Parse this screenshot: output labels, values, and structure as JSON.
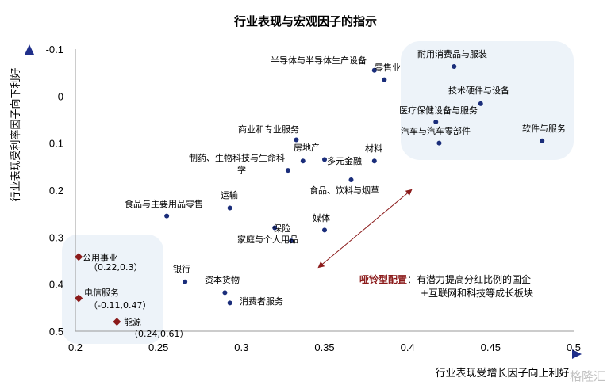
{
  "chart_data": {
    "type": "scatter",
    "title": "行业表现与宏观因子的指示",
    "xlabel": "行业表现受增长因子向上利好",
    "ylabel": "行业表现受利率因子向下利好",
    "xlim": [
      0.2,
      0.5
    ],
    "ylim": [
      -0.1,
      0.5
    ],
    "y_inverted": true,
    "xticks": [
      "0.2",
      "0.25",
      "0.3",
      "0.35",
      "0.4",
      "0.45",
      "0.5"
    ],
    "yticks": [
      "-0.1",
      "0",
      "0.1",
      "0.2",
      "0.3",
      "0.4",
      "0.5"
    ],
    "points": [
      {
        "label": "半导体与半导体生产设备",
        "x": 0.38,
        "y": -0.055,
        "color": "#1a2d7a",
        "marker": "circle"
      },
      {
        "label": "零售业",
        "x": 0.386,
        "y": -0.035,
        "color": "#1a2d7a",
        "marker": "circle"
      },
      {
        "label": "耐用消费品与服装",
        "x": 0.428,
        "y": -0.063,
        "color": "#1a2d7a",
        "marker": "circle"
      },
      {
        "label": "技术硬件与设备",
        "x": 0.444,
        "y": 0.016,
        "color": "#1a2d7a",
        "marker": "circle"
      },
      {
        "label": "医疗保健设备与服务",
        "x": 0.417,
        "y": 0.055,
        "color": "#1a2d7a",
        "marker": "circle"
      },
      {
        "label": "汽车与汽车零部件",
        "x": 0.419,
        "y": 0.1,
        "color": "#1a2d7a",
        "marker": "circle"
      },
      {
        "label": "软件与服务",
        "x": 0.481,
        "y": 0.095,
        "color": "#1a2d7a",
        "marker": "circle"
      },
      {
        "label": "商业和专业服务",
        "x": 0.333,
        "y": 0.093,
        "color": "#1a2d7a",
        "marker": "circle"
      },
      {
        "label": "房地产",
        "x": 0.337,
        "y": 0.138,
        "color": "#1a2d7a",
        "marker": "circle"
      },
      {
        "label": "制药、生物科技与生命科学",
        "x": 0.328,
        "y": 0.158,
        "color": "#1a2d7a",
        "marker": "circle"
      },
      {
        "label": "多元金融",
        "x": 0.35,
        "y": 0.135,
        "color": "#1a2d7a",
        "marker": "circle"
      },
      {
        "label": "材料",
        "x": 0.38,
        "y": 0.138,
        "color": "#1a2d7a",
        "marker": "circle"
      },
      {
        "label": "食品、饮料与烟草",
        "x": 0.366,
        "y": 0.178,
        "color": "#1a2d7a",
        "marker": "circle"
      },
      {
        "label": "食品与主要用品零售",
        "x": 0.255,
        "y": 0.255,
        "color": "#1a2d7a",
        "marker": "circle"
      },
      {
        "label": "运输",
        "x": 0.293,
        "y": 0.238,
        "color": "#1a2d7a",
        "marker": "circle"
      },
      {
        "label": "保险",
        "x": 0.32,
        "y": 0.28,
        "color": "#1a2d7a",
        "marker": "circle"
      },
      {
        "label": "家庭与个人用品",
        "x": 0.33,
        "y": 0.308,
        "color": "#1a2d7a",
        "marker": "circle"
      },
      {
        "label": "媒体",
        "x": 0.35,
        "y": 0.285,
        "color": "#1a2d7a",
        "marker": "circle"
      },
      {
        "label": "银行",
        "x": 0.266,
        "y": 0.395,
        "color": "#1a2d7a",
        "marker": "circle"
      },
      {
        "label": "资本货物",
        "x": 0.29,
        "y": 0.418,
        "color": "#1a2d7a",
        "marker": "circle"
      },
      {
        "label": "消费者服务",
        "x": 0.293,
        "y": 0.44,
        "color": "#1a2d7a",
        "marker": "circle"
      },
      {
        "label": "公用事业",
        "sublabel": "（0.22,0.3）",
        "x": 0.202,
        "y": 0.342,
        "color": "#8b1a1a",
        "marker": "diamond"
      },
      {
        "label": "电信服务",
        "sublabel": "（-0.11,0.47）",
        "x": 0.202,
        "y": 0.43,
        "color": "#8b1a1a",
        "marker": "diamond"
      },
      {
        "label": "能源",
        "sublabel": "（0.24,0.61）",
        "x": 0.225,
        "y": 0.48,
        "color": "#8b1a1a",
        "marker": "diamond"
      }
    ],
    "annotation": {
      "title": "哑铃型配置",
      "line1": "：有潜力提高分红比例的国企",
      "line2": "+互联网和科技等成长板块"
    },
    "grid": false,
    "legend": "none"
  },
  "watermark": "格隆汇",
  "colors": {
    "axis_arrow": "#1f2f8a",
    "highlight_bg": "#edf3f9",
    "arrow": "#8b1a1a"
  }
}
